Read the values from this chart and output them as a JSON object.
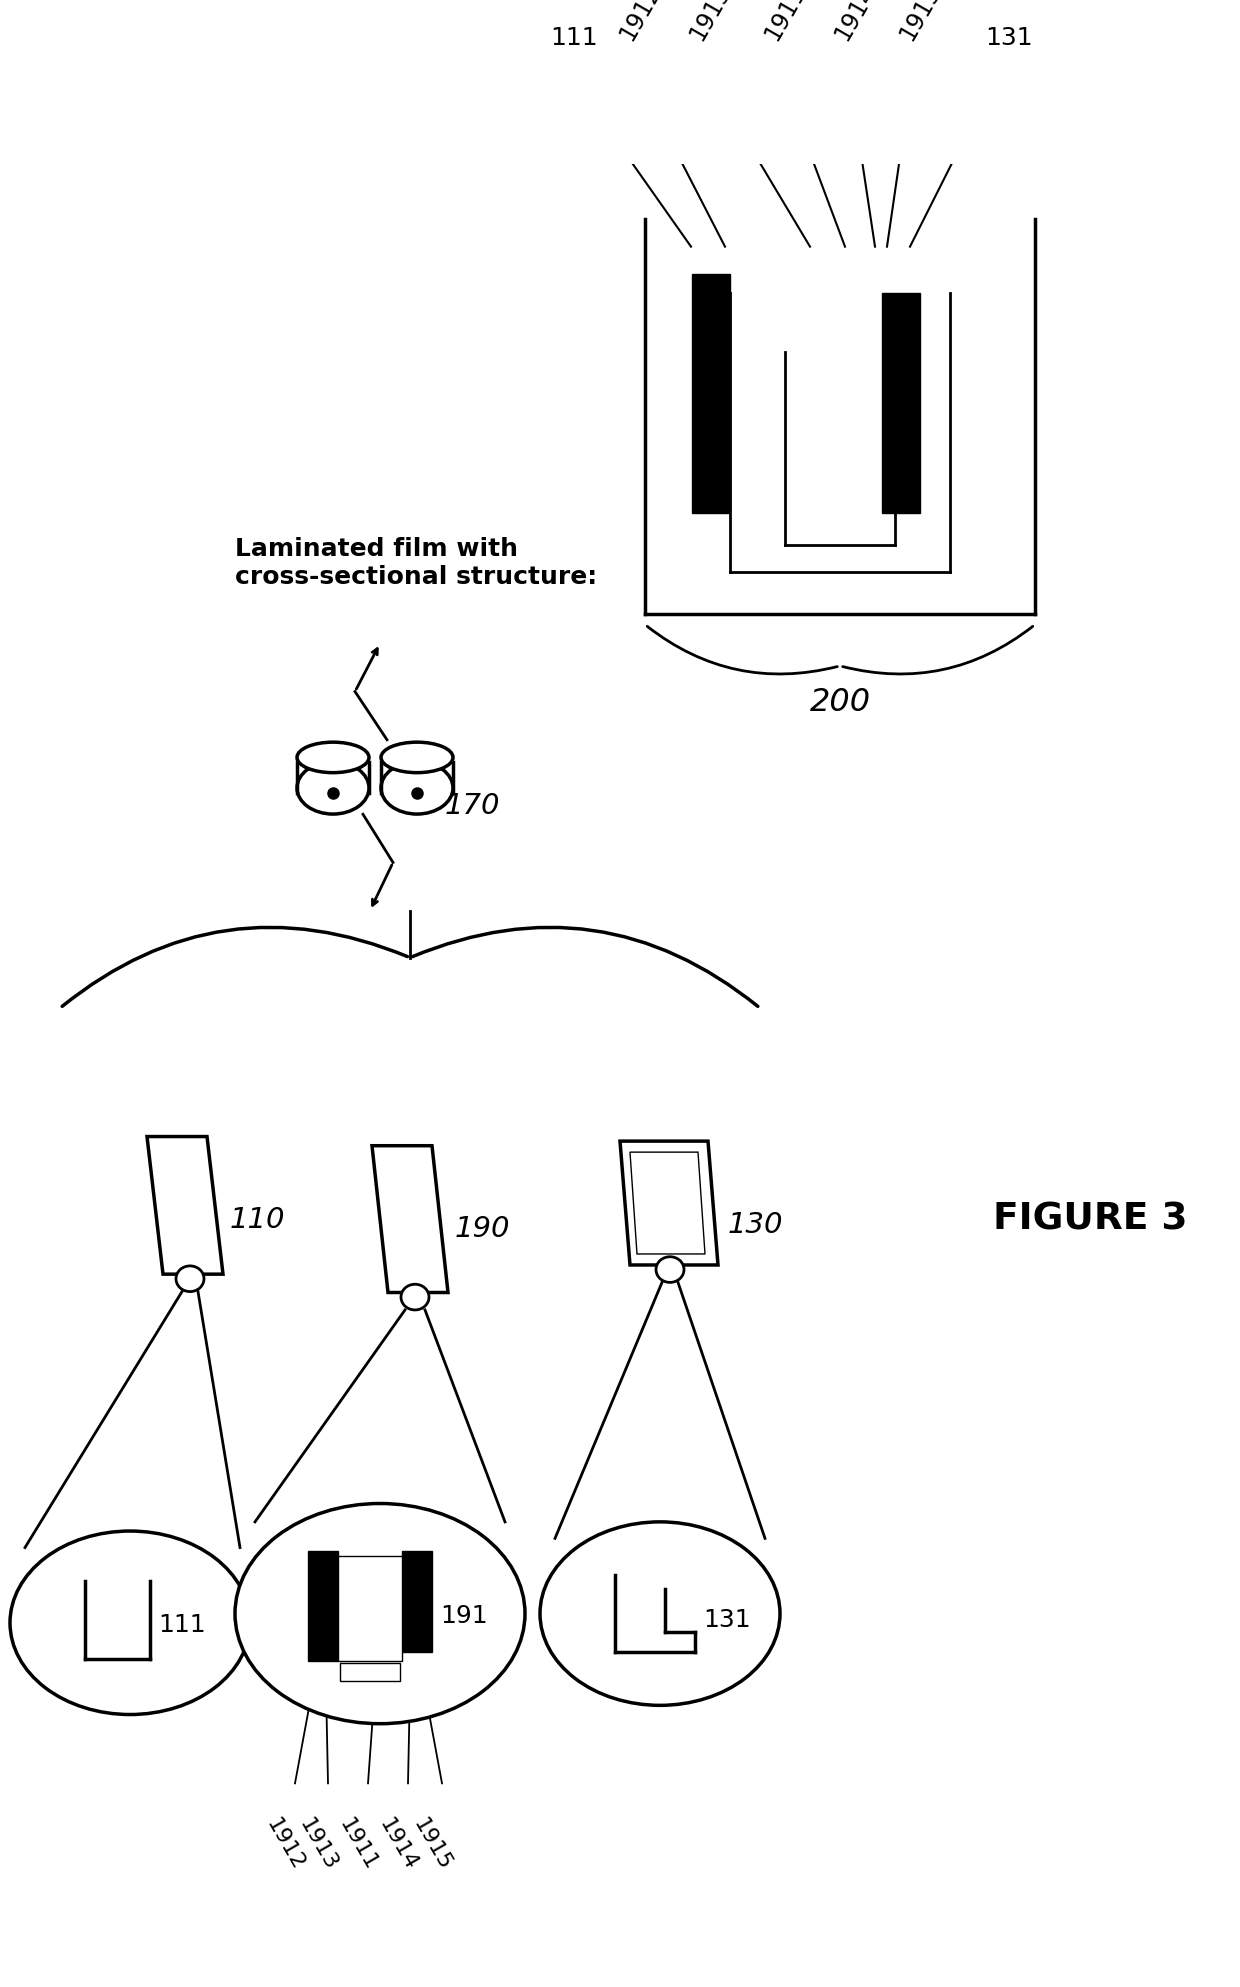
{
  "bg_color": "#ffffff",
  "black": "#000000",
  "figure_label": "FIGURE 3",
  "laminated_text": "Laminated film with\ncross-sectional structure:",
  "label_110": "110",
  "label_190": "190",
  "label_130": "130",
  "label_111": "111",
  "label_191": "191",
  "label_131": "131",
  "label_1911": "1911",
  "label_1912": "1912",
  "label_1913": "1913",
  "label_1914": "1914",
  "label_1915": "1915",
  "label_170": "170",
  "label_200": "200"
}
